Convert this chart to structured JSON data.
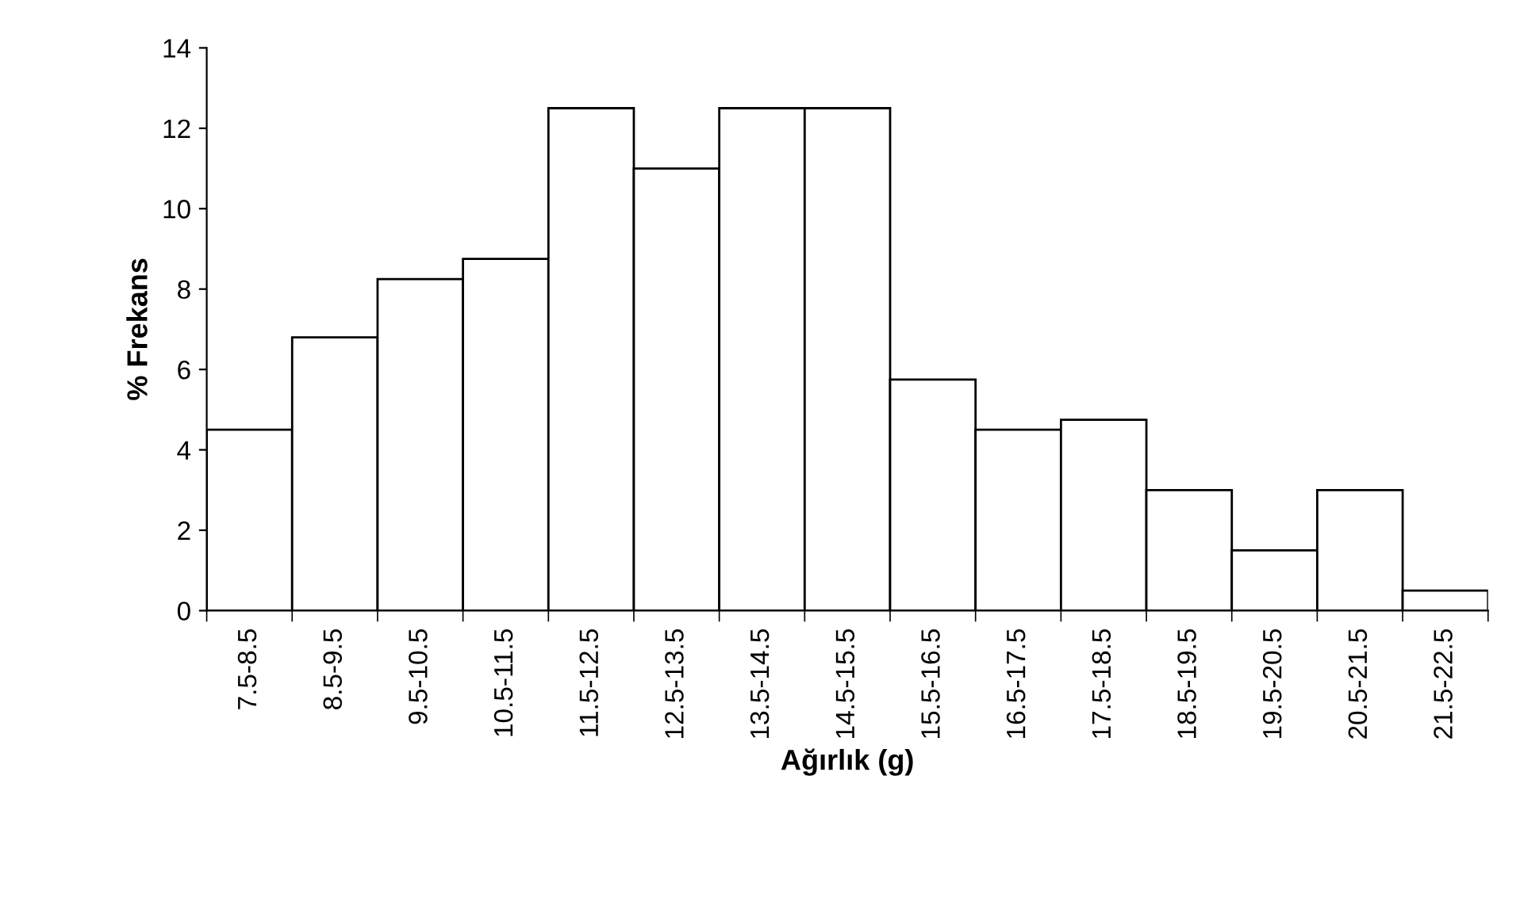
{
  "chart_data": {
    "type": "bar",
    "xlabel": "Ağırlık (g)",
    "ylabel": "% Frekans",
    "categories": [
      "7.5-8.5",
      "8.5-9.5",
      "9.5-10.5",
      "10.5-11.5",
      "11.5-12.5",
      "12.5-13.5",
      "13.5-14.5",
      "14.5-15.5",
      "15.5-16.5",
      "16.5-17.5",
      "17.5-18.5",
      "18.5-19.5",
      "19.5-20.5",
      "20.5-21.5",
      "21.5-22.5"
    ],
    "values": [
      4.5,
      6.8,
      8.25,
      8.75,
      12.5,
      11,
      12.5,
      12.5,
      5.75,
      4.5,
      4.75,
      3,
      1.5,
      3,
      0.5
    ],
    "color": "#ffffff",
    "ylim": [
      0,
      14
    ],
    "yticks": [
      0,
      2,
      4,
      6,
      8,
      10,
      12,
      14
    ],
    "grid": false,
    "legend": false
  }
}
